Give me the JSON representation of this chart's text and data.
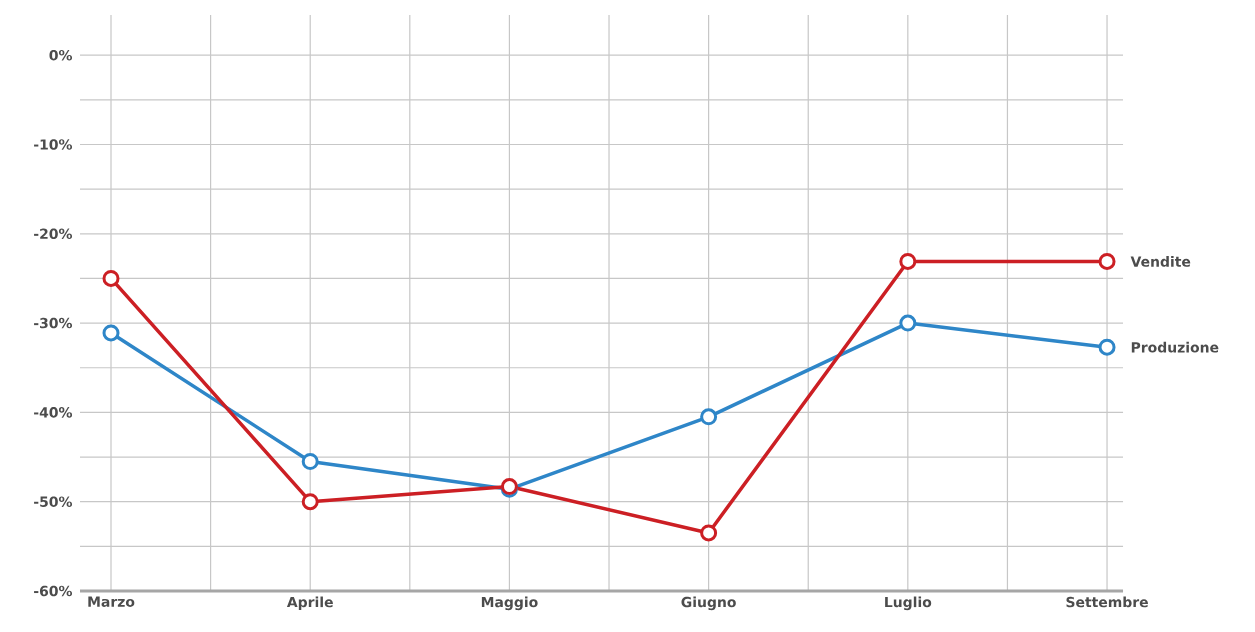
{
  "chart_data": {
    "type": "line",
    "categories": [
      "Marzo",
      "Aprile",
      "Maggio",
      "Giugno",
      "Luglio",
      "Settembre"
    ],
    "series": [
      {
        "name": "Vendite",
        "color": "#cc1f24",
        "values": [
          -25,
          -50,
          -48.3,
          -53.5,
          -23.1,
          -23.1
        ]
      },
      {
        "name": "Produzione",
        "color": "#2e86c8",
        "values": [
          -31.1,
          -45.5,
          -48.6,
          -40.5,
          -30,
          -32.7
        ]
      }
    ],
    "ylim": [
      -60,
      4.5
    ],
    "yticks": [
      {
        "value": 0,
        "label": "0%"
      },
      {
        "value": -5,
        "label": null
      },
      {
        "value": -10,
        "label": "-10%"
      },
      {
        "value": -15,
        "label": null
      },
      {
        "value": -20,
        "label": "-20%"
      },
      {
        "value": -25,
        "label": null
      },
      {
        "value": -30,
        "label": "-30%"
      },
      {
        "value": -35,
        "label": null
      },
      {
        "value": -40,
        "label": "-40%"
      },
      {
        "value": -45,
        "label": null
      },
      {
        "value": -50,
        "label": "-50%"
      },
      {
        "value": -55,
        "label": null
      },
      {
        "value": -60,
        "label": "-60%"
      }
    ],
    "grid": true,
    "marker": "circle",
    "line_style": "solid"
  }
}
